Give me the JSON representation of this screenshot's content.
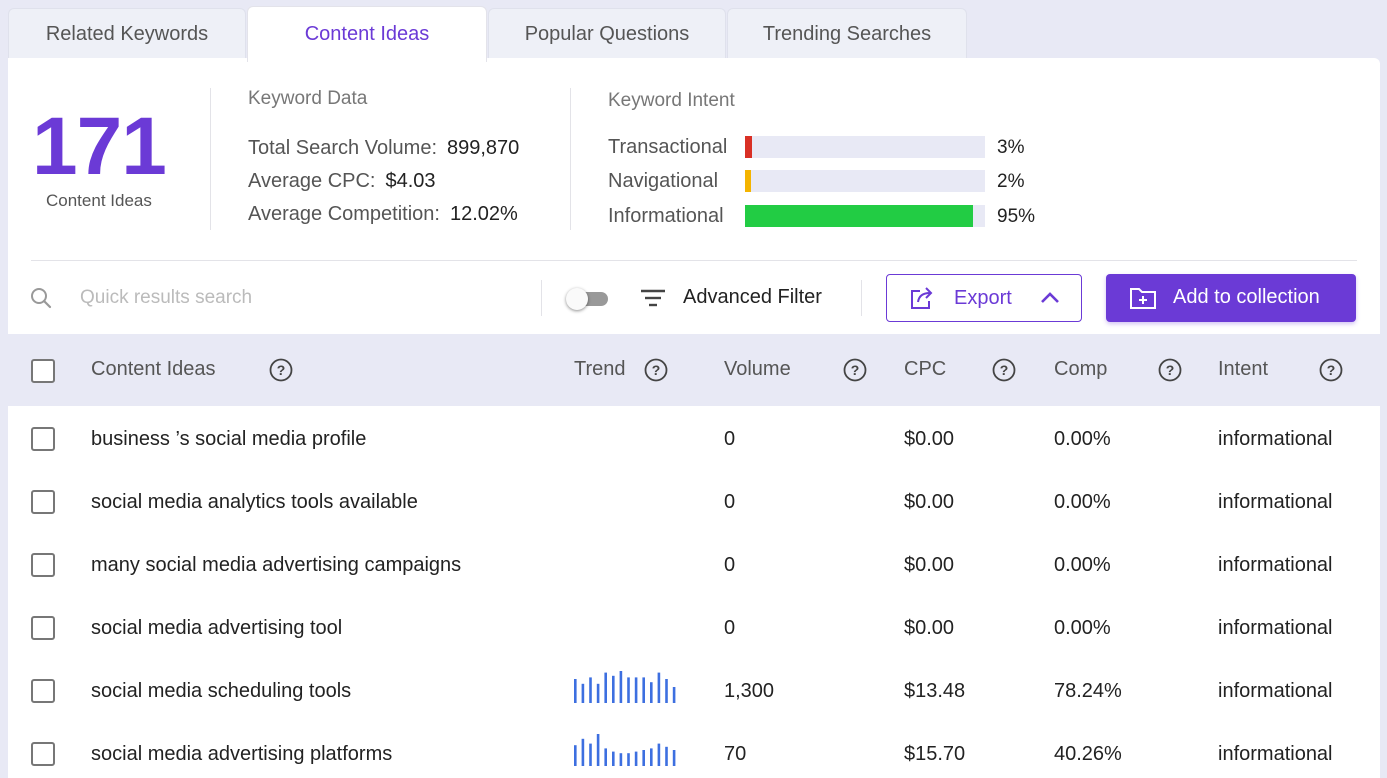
{
  "tabs": [
    {
      "label": "Related Keywords",
      "active": false
    },
    {
      "label": "Content Ideas",
      "active": true
    },
    {
      "label": "Popular Questions",
      "active": false
    },
    {
      "label": "Trending Searches",
      "active": false
    }
  ],
  "summary": {
    "count": "171",
    "count_label": "Content Ideas"
  },
  "keyword_data": {
    "title": "Keyword Data",
    "rows": [
      {
        "label": "Total Search Volume:",
        "value": "899,870"
      },
      {
        "label": "Average CPC:",
        "value": "$4.03"
      },
      {
        "label": "Average Competition:",
        "value": "12.02%"
      }
    ]
  },
  "keyword_intent": {
    "title": "Keyword Intent",
    "items": [
      {
        "label": "Transactional",
        "pct": "3%",
        "fraction": 0.03,
        "color": "#d93025"
      },
      {
        "label": "Navigational",
        "pct": "2%",
        "fraction": 0.02,
        "color": "#f4b400"
      },
      {
        "label": "Informational",
        "pct": "95%",
        "fraction": 0.95,
        "color": "#22cc44"
      }
    ]
  },
  "toolbar": {
    "search_placeholder": "Quick results search",
    "search_value": "",
    "toggle_on": false,
    "filter_label": "Advanced Filter",
    "export_label": "Export",
    "collection_label": "Add to collection"
  },
  "table": {
    "columns": [
      "Content Ideas",
      "Trend",
      "Volume",
      "CPC",
      "Comp",
      "Intent"
    ],
    "rows": [
      {
        "idea": "business ’s social media profile",
        "volume": "0",
        "cpc": "$0.00",
        "comp": "0.00%",
        "intent": "informational",
        "trend": []
      },
      {
        "idea": "social media analytics tools available",
        "volume": "0",
        "cpc": "$0.00",
        "comp": "0.00%",
        "intent": "informational",
        "trend": []
      },
      {
        "idea": "many social media advertising campaigns",
        "volume": "0",
        "cpc": "$0.00",
        "comp": "0.00%",
        "intent": "informational",
        "trend": []
      },
      {
        "idea": "social media advertising tool",
        "volume": "0",
        "cpc": "$0.00",
        "comp": "0.00%",
        "intent": "informational",
        "trend": []
      },
      {
        "idea": "social media scheduling tools",
        "volume": "1,300",
        "cpc": "$13.48",
        "comp": "78.24%",
        "intent": "informational",
        "trend": [
          0.75,
          0.6,
          0.8,
          0.6,
          0.95,
          0.85,
          1.0,
          0.8,
          0.8,
          0.8,
          0.65,
          0.95,
          0.75,
          0.5
        ]
      },
      {
        "idea": "social media advertising platforms",
        "volume": "70",
        "cpc": "$15.70",
        "comp": "40.26%",
        "intent": "informational",
        "trend": [
          0.65,
          0.85,
          0.7,
          1.0,
          0.55,
          0.45,
          0.4,
          0.4,
          0.45,
          0.5,
          0.55,
          0.7,
          0.6,
          0.5
        ]
      }
    ]
  },
  "colors": {
    "accent": "#6b3ad6",
    "trend_bar": "#3d6fe0"
  }
}
